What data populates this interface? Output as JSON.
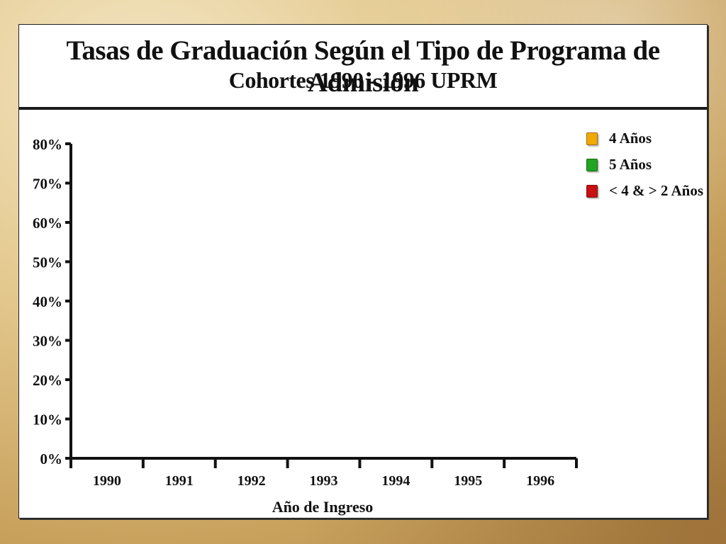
{
  "chart_data": {
    "type": "bar",
    "title": "Tasas de Graduación Según el Tipo de Programa de Admisión",
    "subtitle": "Cohortes 1990 - 1996 UPRM",
    "xlabel": "Año de Ingreso",
    "ylabel": "",
    "categories": [
      "1990",
      "1991",
      "1992",
      "1993",
      "1994",
      "1995",
      "1996"
    ],
    "y_ticks": [
      "0%",
      "10%",
      "20%",
      "30%",
      "40%",
      "50%",
      "60%",
      "70%",
      "80%"
    ],
    "ylim": [
      0,
      80
    ],
    "grid": false,
    "legend_position": "top-right",
    "series": [
      {
        "name": "4 Años",
        "color": "#f2a900",
        "values": [
          null,
          null,
          null,
          null,
          null,
          null,
          null
        ]
      },
      {
        "name": "5 Años",
        "color": "#1fa51f",
        "values": [
          null,
          null,
          null,
          null,
          null,
          null,
          null
        ]
      },
      {
        "name": "< 4 & > 2 Años",
        "color": "#c81010",
        "values": [
          null,
          null,
          null,
          null,
          null,
          null,
          null
        ]
      }
    ]
  }
}
